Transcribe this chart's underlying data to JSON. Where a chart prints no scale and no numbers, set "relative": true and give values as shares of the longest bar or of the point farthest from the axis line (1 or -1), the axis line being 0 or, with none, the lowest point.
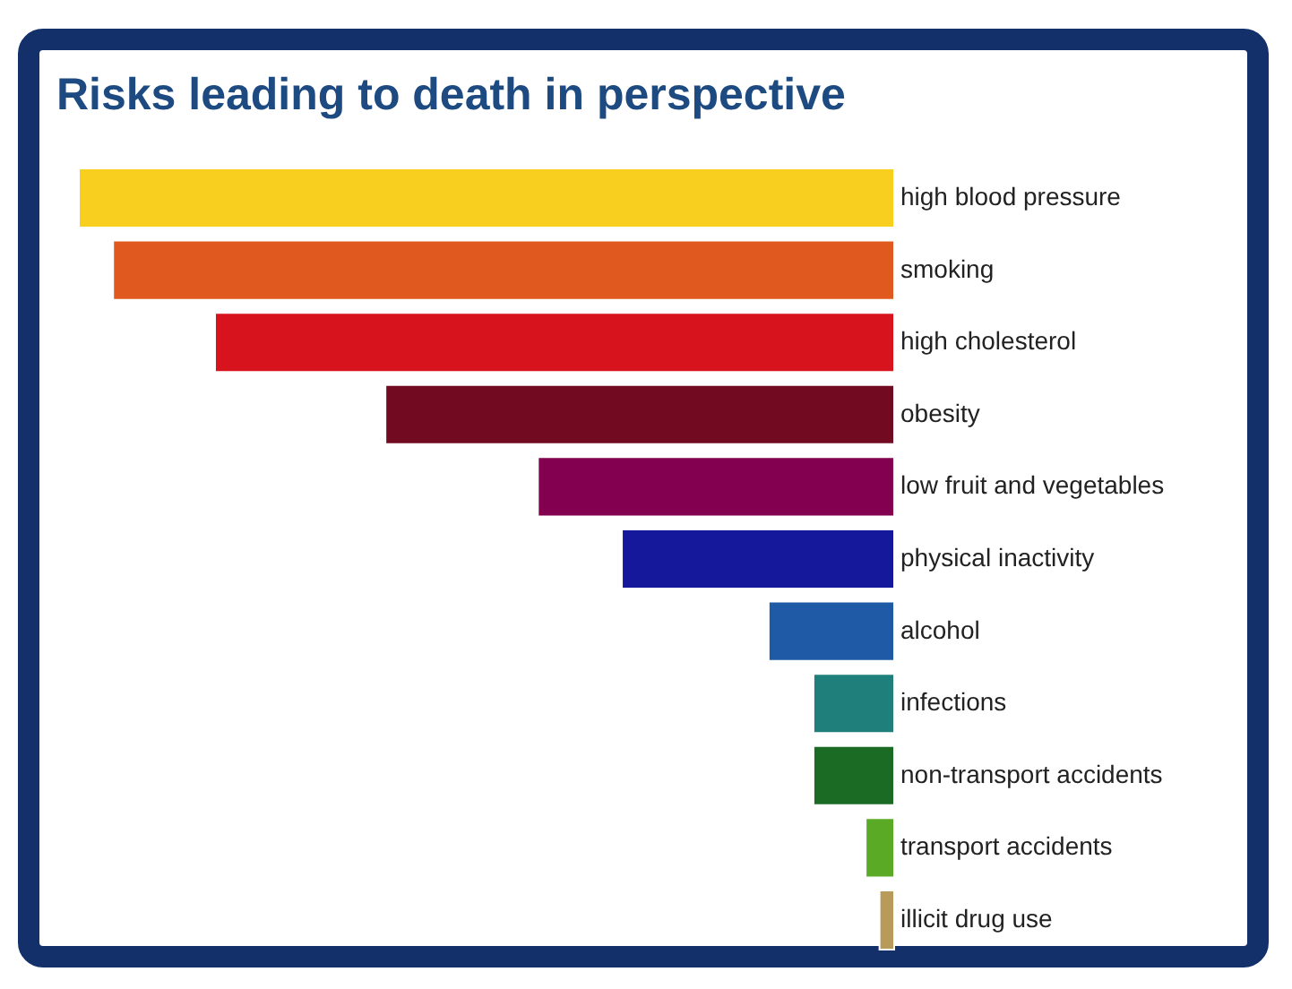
{
  "chart_data": {
    "type": "bar",
    "orientation": "horizontal",
    "relative": true,
    "title": "Risks leading to death in perspective",
    "categories": [
      "high blood pressure",
      "smoking",
      "high cholesterol",
      "obesity",
      "low fruit and vegetables",
      "physical inactivity",
      "alcohol",
      "infections",
      "non-transport accidents",
      "transport accidents",
      "illicit drug use"
    ],
    "values": [
      1,
      0.958,
      0.833,
      0.624,
      0.437,
      0.334,
      0.154,
      0.099,
      0.099,
      0.035,
      0.018
    ],
    "colors": [
      "#f8cf1e",
      "#e05a20",
      "#d7141e",
      "#720b22",
      "#82004f",
      "#15189a",
      "#1f5aa6",
      "#1f7f7a",
      "#1b6b25",
      "#5aaa26",
      "#b89a5a"
    ],
    "legend": false
  }
}
